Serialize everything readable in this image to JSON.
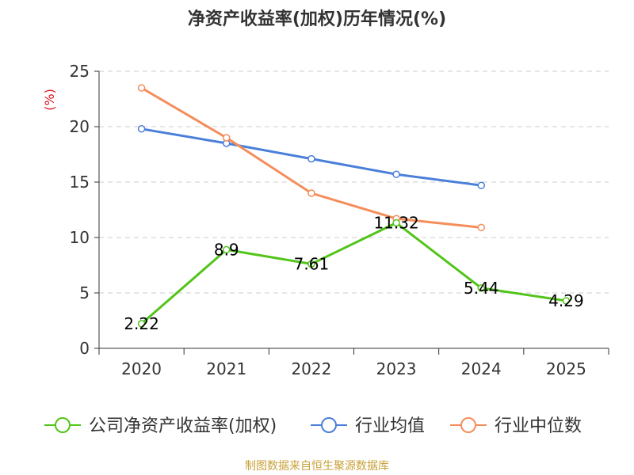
{
  "chart_data": {
    "type": "line",
    "title": "净资产收益率(加权)历年情况(%)",
    "ylabel": "(%)",
    "xlabel": "",
    "ylim": [
      0,
      25
    ],
    "yticks": [
      0,
      5,
      10,
      15,
      20,
      25
    ],
    "categories": [
      "2020",
      "2021",
      "2022",
      "2023",
      "2024",
      "2025"
    ],
    "grid": true,
    "legend": "bottom",
    "series": [
      {
        "name": "公司净资产收益率(加权)",
        "color": "#52c41a",
        "values": [
          2.22,
          8.9,
          7.61,
          11.32,
          5.44,
          4.29
        ],
        "labels": [
          "2.22",
          "8.9",
          "7.61",
          "11.32",
          "5.44",
          "4.29"
        ]
      },
      {
        "name": "行业均值",
        "color": "#4a7fd9",
        "values": [
          19.8,
          18.5,
          17.1,
          15.7,
          14.7,
          null
        ]
      },
      {
        "name": "行业中位数",
        "color": "#f58d5a",
        "values": [
          23.5,
          19.0,
          14.0,
          11.7,
          10.9,
          null
        ]
      }
    ]
  },
  "footer": {
    "source": "制图数据来自恒生聚源数据库"
  }
}
